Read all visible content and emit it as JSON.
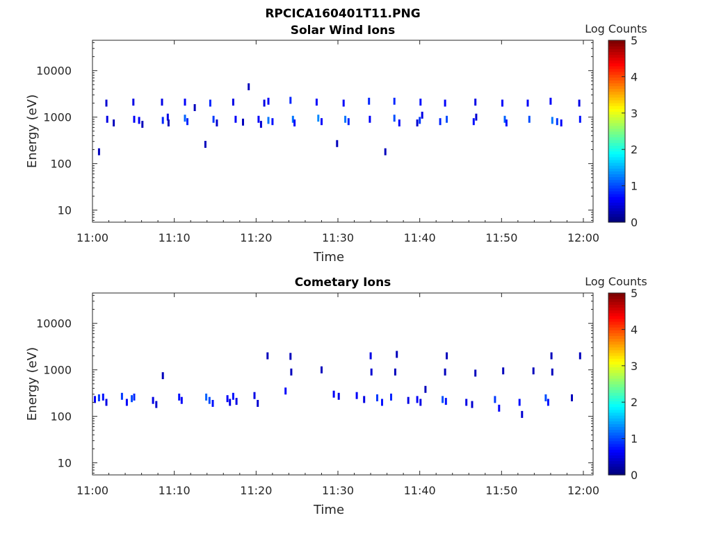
{
  "figure": {
    "title": "RPCICA160401T11.PNG"
  },
  "colormap": {
    "name": "jet",
    "stops": [
      "#00007f",
      "#0000ff",
      "#007fff",
      "#00ffff",
      "#7fff7f",
      "#ffff00",
      "#ff7f00",
      "#ff0000",
      "#7f0000"
    ],
    "frame_color": "#262626",
    "text_color": "#262626"
  },
  "chart_data": [
    {
      "type": "heatmap",
      "title": "Solar Wind Ions",
      "xlabel": "Time",
      "ylabel": "Energy (eV)",
      "xlim_minutes_after_11": [
        0,
        60
      ],
      "ylim": [
        5.5,
        45000
      ],
      "y_scale": "log",
      "xticks": [
        "11:00",
        "11:10",
        "11:20",
        "11:30",
        "11:40",
        "11:50",
        "12:00"
      ],
      "yticks": [
        {
          "value": 10,
          "label": "10"
        },
        {
          "value": 100,
          "label": "100"
        },
        {
          "value": 1000,
          "label": "1000"
        },
        {
          "value": 10000,
          "label": "10000"
        }
      ],
      "colorbar": {
        "label": "Log Counts",
        "range": [
          0,
          5
        ],
        "ticks": [
          "0",
          "1",
          "2",
          "3",
          "4",
          "5"
        ]
      },
      "points": [
        [
          0.8,
          180,
          0.3
        ],
        [
          1.7,
          2000,
          0.4
        ],
        [
          1.8,
          900,
          0.5
        ],
        [
          2.6,
          750,
          0.3
        ],
        [
          5.0,
          2100,
          0.5
        ],
        [
          5.1,
          900,
          0.6
        ],
        [
          5.7,
          850,
          0.6
        ],
        [
          6.1,
          700,
          0.3
        ],
        [
          8.5,
          2100,
          0.5
        ],
        [
          8.6,
          850,
          0.8
        ],
        [
          9.2,
          1000,
          0.5
        ],
        [
          9.3,
          750,
          0.3
        ],
        [
          11.3,
          2100,
          0.6
        ],
        [
          11.3,
          950,
          1.1
        ],
        [
          11.6,
          800,
          0.8
        ],
        [
          12.5,
          1600,
          0.3
        ],
        [
          13.8,
          260,
          0.3
        ],
        [
          14.4,
          2000,
          0.8
        ],
        [
          14.8,
          900,
          0.9
        ],
        [
          15.2,
          750,
          0.4
        ],
        [
          17.2,
          2100,
          0.5
        ],
        [
          17.5,
          900,
          0.6
        ],
        [
          18.4,
          780,
          0.3
        ],
        [
          19.1,
          4500,
          0.3
        ],
        [
          20.3,
          900,
          0.6
        ],
        [
          20.6,
          700,
          0.4
        ],
        [
          21.0,
          2000,
          0.5
        ],
        [
          21.5,
          2200,
          0.6
        ],
        [
          21.5,
          850,
          1.2
        ],
        [
          22.0,
          800,
          0.7
        ],
        [
          24.2,
          2300,
          0.8
        ],
        [
          24.5,
          900,
          1.2
        ],
        [
          24.7,
          750,
          0.6
        ],
        [
          27.4,
          2100,
          0.6
        ],
        [
          27.6,
          950,
          1.3
        ],
        [
          28.0,
          800,
          0.6
        ],
        [
          29.9,
          270,
          0.3
        ],
        [
          30.7,
          2000,
          0.6
        ],
        [
          30.9,
          900,
          1.2
        ],
        [
          31.3,
          800,
          0.8
        ],
        [
          33.8,
          2200,
          0.8
        ],
        [
          33.9,
          900,
          0.6
        ],
        [
          35.8,
          180,
          0.3
        ],
        [
          36.9,
          2200,
          0.8
        ],
        [
          36.9,
          950,
          1.0
        ],
        [
          37.5,
          750,
          0.6
        ],
        [
          40.1,
          2100,
          0.7
        ],
        [
          40.3,
          1100,
          0.5
        ],
        [
          40.0,
          850,
          0.9
        ],
        [
          39.7,
          750,
          0.4
        ],
        [
          43.1,
          2000,
          0.6
        ],
        [
          43.3,
          900,
          1.0
        ],
        [
          42.5,
          800,
          0.8
        ],
        [
          46.8,
          2100,
          0.5
        ],
        [
          46.9,
          1000,
          0.4
        ],
        [
          46.6,
          800,
          0.7
        ],
        [
          50.1,
          2000,
          0.6
        ],
        [
          50.4,
          900,
          1.1
        ],
        [
          50.6,
          750,
          0.7
        ],
        [
          53.2,
          2000,
          0.6
        ],
        [
          53.4,
          900,
          1.0
        ],
        [
          56.0,
          2200,
          0.6
        ],
        [
          56.2,
          850,
          1.2
        ],
        [
          56.8,
          800,
          0.9
        ],
        [
          57.3,
          750,
          0.6
        ],
        [
          59.5,
          2000,
          0.5
        ],
        [
          59.6,
          900,
          0.7
        ]
      ]
    },
    {
      "type": "heatmap",
      "title": "Cometary Ions",
      "xlabel": "Time",
      "ylabel": "Energy (eV)",
      "xlim_minutes_after_11": [
        0,
        60
      ],
      "ylim": [
        5.5,
        45000
      ],
      "y_scale": "log",
      "xticks": [
        "11:00",
        "11:10",
        "11:20",
        "11:30",
        "11:40",
        "11:50",
        "12:00"
      ],
      "yticks": [
        {
          "value": 10,
          "label": "10"
        },
        {
          "value": 100,
          "label": "100"
        },
        {
          "value": 1000,
          "label": "1000"
        },
        {
          "value": 10000,
          "label": "10000"
        }
      ],
      "colorbar": {
        "label": "Log Counts",
        "range": [
          0,
          5
        ],
        "ticks": [
          "0",
          "1",
          "2",
          "3",
          "4",
          "5"
        ]
      },
      "points": [
        [
          0.3,
          230,
          0.6
        ],
        [
          0.8,
          250,
          0.9
        ],
        [
          1.3,
          260,
          0.7
        ],
        [
          1.7,
          200,
          0.5
        ],
        [
          3.6,
          270,
          0.9
        ],
        [
          4.2,
          200,
          0.6
        ],
        [
          4.8,
          240,
          1.0
        ],
        [
          5.1,
          260,
          0.8
        ],
        [
          7.4,
          220,
          0.5
        ],
        [
          7.8,
          180,
          0.4
        ],
        [
          8.6,
          750,
          0.3
        ],
        [
          10.6,
          260,
          0.7
        ],
        [
          10.9,
          220,
          0.6
        ],
        [
          13.9,
          260,
          1.1
        ],
        [
          14.3,
          220,
          1.0
        ],
        [
          14.7,
          190,
          0.7
        ],
        [
          16.5,
          240,
          0.6
        ],
        [
          16.8,
          200,
          0.5
        ],
        [
          17.2,
          270,
          0.7
        ],
        [
          17.6,
          210,
          0.5
        ],
        [
          19.8,
          280,
          0.5
        ],
        [
          20.2,
          190,
          0.4
        ],
        [
          21.4,
          2000,
          0.3
        ],
        [
          23.6,
          350,
          0.6
        ],
        [
          24.2,
          1950,
          0.3
        ],
        [
          24.3,
          900,
          0.3
        ],
        [
          28.0,
          1000,
          0.3
        ],
        [
          29.5,
          300,
          0.6
        ],
        [
          30.1,
          270,
          0.5
        ],
        [
          32.3,
          280,
          0.6
        ],
        [
          33.2,
          230,
          0.5
        ],
        [
          34.0,
          2000,
          0.5
        ],
        [
          34.1,
          900,
          0.4
        ],
        [
          34.8,
          250,
          0.9
        ],
        [
          35.4,
          200,
          0.7
        ],
        [
          36.5,
          260,
          0.8
        ],
        [
          37.2,
          2150,
          0.3
        ],
        [
          37.0,
          900,
          0.3
        ],
        [
          38.6,
          220,
          0.5
        ],
        [
          39.7,
          230,
          0.6
        ],
        [
          40.1,
          200,
          0.5
        ],
        [
          40.7,
          380,
          0.3
        ],
        [
          42.8,
          230,
          1.0
        ],
        [
          43.2,
          210,
          0.7
        ],
        [
          43.3,
          2000,
          0.3
        ],
        [
          43.1,
          900,
          0.3
        ],
        [
          45.7,
          200,
          0.5
        ],
        [
          46.4,
          180,
          0.4
        ],
        [
          46.8,
          850,
          0.3
        ],
        [
          49.2,
          230,
          0.9
        ],
        [
          49.7,
          150,
          0.6
        ],
        [
          50.2,
          950,
          0.3
        ],
        [
          52.2,
          200,
          0.7
        ],
        [
          52.5,
          110,
          0.4
        ],
        [
          53.9,
          950,
          0.3
        ],
        [
          55.4,
          250,
          1.0
        ],
        [
          55.7,
          200,
          0.7
        ],
        [
          56.1,
          2000,
          0.3
        ],
        [
          56.2,
          900,
          0.3
        ],
        [
          58.6,
          250,
          0.3
        ],
        [
          59.6,
          2000,
          0.3
        ]
      ]
    }
  ]
}
